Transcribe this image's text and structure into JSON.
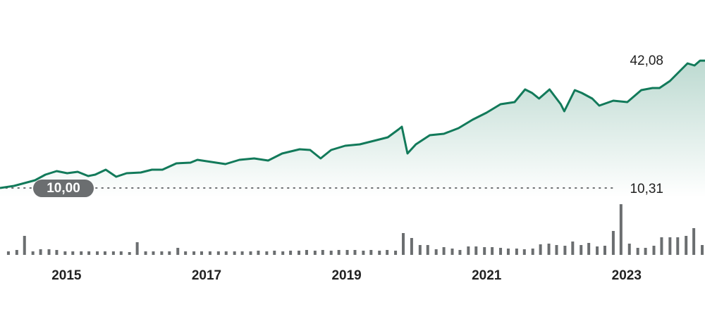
{
  "chart_data": [
    {
      "type": "line",
      "x": [
        2014.1,
        2014.3,
        2014.45,
        2014.6,
        2014.75,
        2014.91,
        2015.06,
        2015.21,
        2015.36,
        2015.46,
        2015.61,
        2015.76,
        2015.91,
        2016.11,
        2016.27,
        2016.42,
        2016.62,
        2016.82,
        2016.92,
        2017.12,
        2017.32,
        2017.52,
        2017.73,
        2017.93,
        2018.13,
        2018.38,
        2018.53,
        2018.68,
        2018.83,
        2019.03,
        2019.24,
        2019.44,
        2019.64,
        2019.79,
        2019.84,
        2019.92,
        2020.04,
        2020.24,
        2020.44,
        2020.65,
        2020.85,
        2021.05,
        2021.25,
        2021.45,
        2021.6,
        2021.7,
        2021.8,
        2021.95,
        2022.11,
        2022.16,
        2022.31,
        2022.41,
        2022.56,
        2022.66,
        2022.86,
        2023.06,
        2023.26,
        2023.42,
        2023.52,
        2023.67,
        2023.82,
        2023.92,
        2024.02,
        2024.1,
        2024.17
      ],
      "series": [
        {
          "color": "#127a5a",
          "values": [
            10.0,
            10.53,
            11.24,
            11.95,
            13.37,
            14.26,
            13.72,
            14.08,
            13.01,
            13.37,
            14.61,
            12.84,
            13.72,
            13.9,
            14.61,
            14.61,
            16.21,
            16.38,
            17.09,
            16.56,
            16.03,
            17.09,
            17.45,
            16.91,
            18.69,
            19.75,
            19.57,
            17.45,
            19.57,
            20.64,
            20.99,
            21.88,
            22.77,
            24.72,
            25.43,
            18.69,
            20.99,
            23.3,
            23.65,
            25.07,
            27.2,
            28.97,
            31.1,
            31.63,
            34.82,
            33.94,
            32.52,
            34.82,
            31.1,
            29.33,
            34.65,
            33.94,
            32.52,
            30.74,
            31.99,
            31.63,
            34.65,
            35.18,
            35.18,
            36.95,
            39.61,
            41.38,
            40.85,
            42.08,
            42.08
          ]
        }
      ],
      "last_value_label": "42,08",
      "baseline": {
        "value": 10,
        "label": "10,00"
      },
      "annotation": "10,31",
      "xlim": [
        2014.1,
        2024.17
      ],
      "ylim": [
        7.7,
        46.7
      ]
    },
    {
      "type": "bar",
      "color": "#6b6e70",
      "x": [
        2014.22,
        2014.34,
        2014.45,
        2014.57,
        2014.68,
        2014.8,
        2014.91,
        2015.03,
        2015.14,
        2015.26,
        2015.37,
        2015.49,
        2015.6,
        2015.72,
        2015.83,
        2015.95,
        2016.06,
        2016.18,
        2016.29,
        2016.41,
        2016.52,
        2016.64,
        2016.75,
        2016.87,
        2016.98,
        2017.1,
        2017.22,
        2017.33,
        2017.45,
        2017.56,
        2017.68,
        2017.79,
        2017.91,
        2018.02,
        2018.14,
        2018.25,
        2018.37,
        2018.48,
        2018.6,
        2018.71,
        2018.83,
        2018.94,
        2019.06,
        2019.17,
        2019.29,
        2019.4,
        2019.52,
        2019.63,
        2019.75,
        2019.86,
        2019.98,
        2020.1,
        2020.21,
        2020.33,
        2020.44,
        2020.56,
        2020.67,
        2020.79,
        2020.9,
        2021.02,
        2021.13,
        2021.25,
        2021.36,
        2021.48,
        2021.59,
        2021.71,
        2021.82,
        2021.94,
        2022.05,
        2022.17,
        2022.28,
        2022.4,
        2022.51,
        2022.63,
        2022.74,
        2022.86,
        2022.97,
        2023.09,
        2023.21,
        2023.32,
        2023.44,
        2023.55,
        2023.67,
        2023.78,
        2023.9,
        2024.01,
        2024.13
      ],
      "values": [
        5,
        7,
        27,
        5,
        8,
        8,
        7,
        5,
        5,
        5,
        5,
        5,
        5,
        5,
        5,
        4,
        18,
        5,
        5,
        5,
        5,
        10,
        5,
        5,
        5,
        5,
        5,
        5,
        5,
        5,
        5,
        6,
        5,
        6,
        5,
        6,
        6,
        7,
        6,
        7,
        6,
        7,
        7,
        7,
        6,
        7,
        6,
        7,
        6,
        31,
        24,
        14,
        14,
        8,
        11,
        9,
        7,
        12,
        12,
        11,
        11,
        10,
        9,
        9,
        8,
        9,
        15,
        16,
        14,
        13,
        19,
        14,
        17,
        12,
        13,
        34,
        72,
        16,
        10,
        10,
        13,
        25,
        25,
        25,
        27,
        38,
        14
      ],
      "xlim": [
        2014.1,
        2024.17
      ],
      "xticks": [
        2015,
        2017,
        2019,
        2021,
        2023
      ],
      "ylim": [
        0,
        75
      ]
    }
  ]
}
